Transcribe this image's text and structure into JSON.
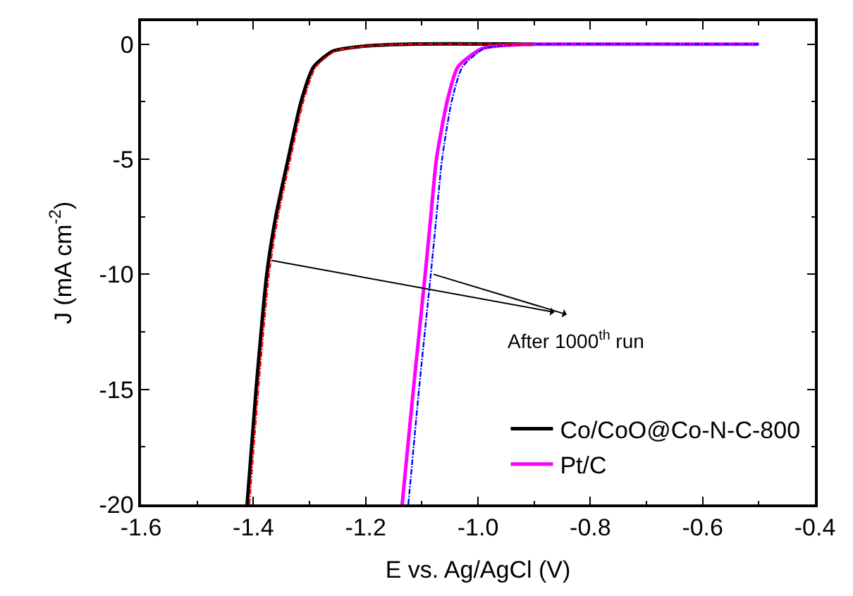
{
  "chart_data": {
    "type": "line",
    "xlabel": "E vs. Ag/AgCl (V)",
    "ylabel": "J (mA cm$^{-2}$)",
    "xlim": [
      -1.6,
      -0.4
    ],
    "xticks": [
      -1.6,
      -1.4,
      -1.2,
      {
        "value": -1.0,
        "label": "-1.0"
      },
      -0.8,
      -0.6,
      -0.4
    ],
    "ylim": [
      -20,
      1
    ],
    "yticks": [
      -20,
      -15,
      -10,
      -5,
      0
    ],
    "grid": false,
    "legend": "bottom right",
    "marker": "none",
    "annotations": [
      "After 1000$^{th}$ run"
    ],
    "series": [
      {
        "name": "Co/CoO@Co-N-C-800",
        "color": "#000000",
        "line_style": "solid",
        "x": [
          -1.411,
          -1.395,
          -1.376,
          -1.36,
          -1.338,
          -1.315,
          -1.293,
          -1.258,
          -1.2,
          -1.125,
          -0.9
        ],
        "values": [
          -20,
          -15,
          -10,
          -7.5,
          -5,
          -2.5,
          -1,
          -0.3,
          -0.08,
          0,
          0
        ]
      },
      {
        "color": "#ff0000",
        "line_style": "dashed",
        "x": [
          -1.407,
          -1.391,
          -1.372,
          -1.356,
          -1.334,
          -1.311,
          -1.289,
          -1.254,
          -1.196,
          -1.121,
          -0.9
        ],
        "values": [
          -20,
          -15,
          -10,
          -7.5,
          -5,
          -2.5,
          -1,
          -0.3,
          -0.08,
          0,
          0
        ]
      },
      {
        "name": "Pt/C",
        "color": "#ff00ff",
        "line_style": "solid",
        "x": [
          -1.135,
          -1.115,
          -1.094,
          -1.084,
          -1.074,
          -1.055,
          -1.036,
          -0.994,
          -0.95,
          -0.898,
          -0.5
        ],
        "values": [
          -20,
          -15,
          -10,
          -7.5,
          -5,
          -2.5,
          -1,
          -0.2,
          -0.05,
          0,
          0
        ]
      },
      {
        "color": "#0000ff",
        "line_style": "dashed",
        "x": [
          -1.124,
          -1.105,
          -1.084,
          -1.074,
          -1.064,
          -1.047,
          -1.028,
          -0.99,
          -0.95,
          -0.9,
          -0.5
        ],
        "values": [
          -20,
          -15,
          -10,
          -7.5,
          -5,
          -2.5,
          -1,
          -0.2,
          -0.05,
          0,
          0
        ]
      }
    ]
  }
}
